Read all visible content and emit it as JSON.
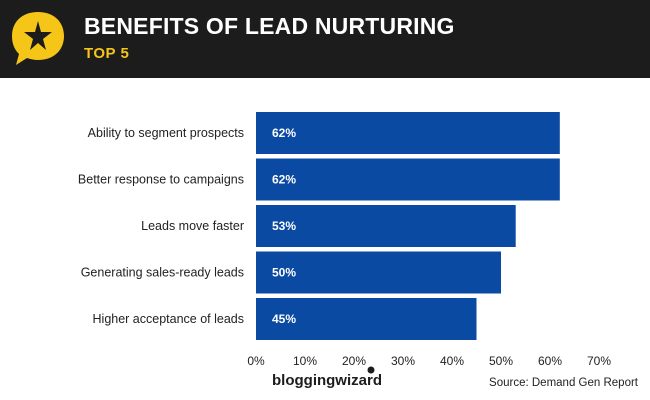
{
  "header": {
    "title": "BENEFITS OF LEAD NURTURING",
    "subtitle": "TOP 5",
    "badge_icon": "star-speech-bubble-icon"
  },
  "colors": {
    "header_bg": "#1c1c1c",
    "badge": "#f5c518",
    "bar": "#0b4aa3",
    "accent": "#f5c518"
  },
  "chart_data": {
    "type": "bar",
    "orientation": "horizontal",
    "title": "BENEFITS OF LEAD NURTURING",
    "subtitle": "TOP 5",
    "categories": [
      "Ability to segment prospects",
      "Better response to campaigns",
      "Leads move faster",
      "Generating sales-ready leads",
      "Higher acceptance of leads"
    ],
    "values": [
      62,
      62,
      53,
      50,
      45
    ],
    "value_labels": [
      "62%",
      "62%",
      "53%",
      "50%",
      "45%"
    ],
    "xlim": [
      0,
      70
    ],
    "xticks": [
      0,
      10,
      20,
      30,
      40,
      50,
      60,
      70
    ],
    "xtick_labels": [
      "0%",
      "10%",
      "20%",
      "30%",
      "40%",
      "50%",
      "60%",
      "70%"
    ],
    "xlabel": "",
    "ylabel": "",
    "grid": false,
    "legend": "none"
  },
  "footer": {
    "logo_text": "bloggingwizard",
    "source": "Source: Demand Gen Report"
  }
}
